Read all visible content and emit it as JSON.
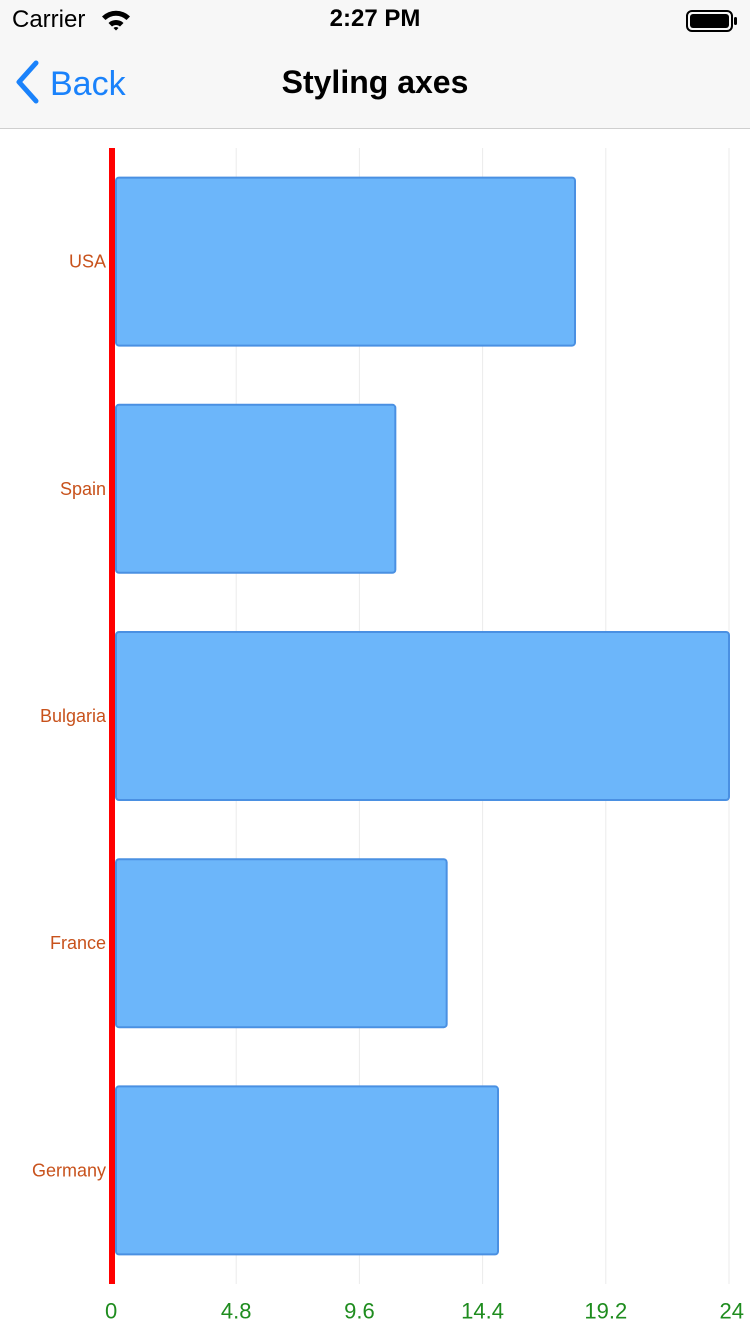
{
  "status_bar": {
    "carrier": "Carrier",
    "time": "2:27 PM",
    "wifi_icon": "wifi-icon",
    "battery_icon": "battery-icon"
  },
  "nav": {
    "back_label": "Back",
    "back_icon": "chevron-left-icon",
    "title": "Styling axes"
  },
  "colors": {
    "bar_fill": "#6cb6fa",
    "bar_stroke": "#4a90e2",
    "axis_line": "#ff0000",
    "category_label": "#c8521c",
    "value_label": "#1e8c1e",
    "grid": "#ebebeb",
    "accent": "#1a82fb"
  },
  "chart_data": {
    "type": "bar",
    "orientation": "horizontal",
    "categories": [
      "USA",
      "Spain",
      "Bulgaria",
      "France",
      "Germany"
    ],
    "values": [
      18,
      11,
      24,
      13,
      15
    ],
    "xlim": [
      0,
      24
    ],
    "ticks": [
      0,
      4.8,
      9.6,
      14.4,
      19.2,
      24
    ],
    "tick_labels": [
      "0",
      "4.8",
      "9.6",
      "14.4",
      "19.2",
      "24"
    ],
    "grid": true,
    "title": "",
    "xlabel": "",
    "ylabel": ""
  }
}
